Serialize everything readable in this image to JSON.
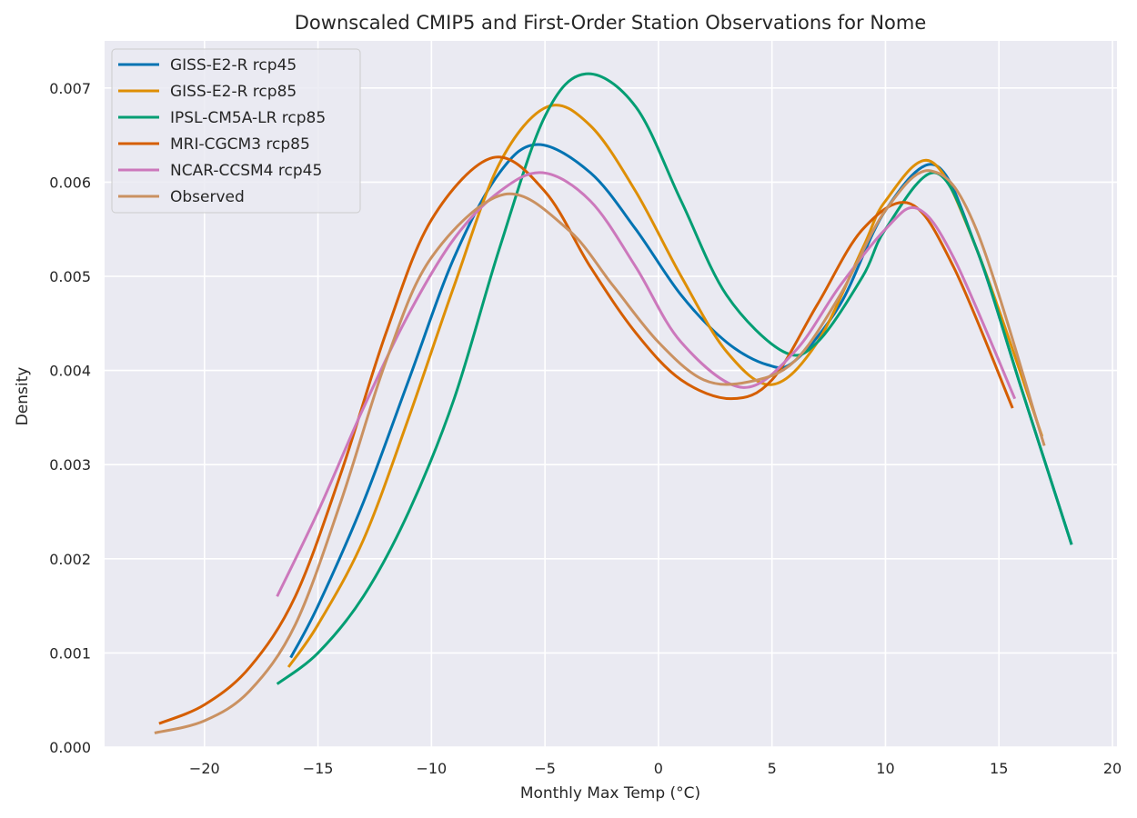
{
  "chart_data": {
    "type": "line",
    "title": "Downscaled CMIP5 and First-Order Station Observations for Nome",
    "xlabel": "Monthly Max Temp (°C)",
    "ylabel": "Density",
    "xlim": [
      -24.4,
      20.2
    ],
    "ylim": [
      0,
      0.0075
    ],
    "xticks": [
      -20,
      -15,
      -10,
      -5,
      0,
      5,
      10,
      15,
      20
    ],
    "xtick_labels": [
      "−20",
      "−15",
      "−10",
      "−5",
      "0",
      "5",
      "10",
      "15",
      "20"
    ],
    "yticks": [
      0,
      0.001,
      0.002,
      0.003,
      0.004,
      0.005,
      0.006,
      0.007
    ],
    "ytick_labels": [
      "0.000",
      "0.001",
      "0.002",
      "0.003",
      "0.004",
      "0.005",
      "0.006",
      "0.007"
    ],
    "grid": true,
    "legend_position": "top-left",
    "series": [
      {
        "name": "GISS-E2-R rcp45",
        "color": "#0173b2",
        "x": [
          -16.2,
          -15,
          -13,
          -11,
          -9,
          -7,
          -5.3,
          -3,
          -1,
          1,
          3,
          4.8,
          6,
          8,
          10,
          12.2,
          14,
          16,
          18.2
        ],
        "y": [
          0.00095,
          0.0015,
          0.0026,
          0.0039,
          0.0052,
          0.0061,
          0.0064,
          0.0061,
          0.0055,
          0.0048,
          0.0043,
          0.00406,
          0.0041,
          0.0047,
          0.0057,
          0.00618,
          0.0053,
          0.0038,
          0.00215
        ]
      },
      {
        "name": "GISS-E2-R rcp85",
        "color": "#de8f05",
        "x": [
          -16.3,
          -15,
          -13,
          -11,
          -9,
          -7,
          -4.9,
          -3,
          -1,
          1,
          3,
          5,
          7,
          9,
          10,
          12,
          14,
          16.9
        ],
        "y": [
          0.00085,
          0.0013,
          0.0022,
          0.0035,
          0.0049,
          0.0062,
          0.0068,
          0.0066,
          0.0059,
          0.005,
          0.0042,
          0.00385,
          0.0043,
          0.0053,
          0.0058,
          0.00622,
          0.0053,
          0.0033
        ]
      },
      {
        "name": "IPSL-CM5A-LR rcp85",
        "color": "#029e73",
        "x": [
          -16.8,
          -15,
          -13,
          -11,
          -9,
          -7,
          -5,
          -3.2,
          -1,
          1,
          3,
          5.5,
          7,
          9,
          10,
          12.2,
          14,
          16,
          18.2
        ],
        "y": [
          0.00067,
          0.001,
          0.0016,
          0.0025,
          0.0037,
          0.0053,
          0.0067,
          0.00715,
          0.0068,
          0.0058,
          0.0048,
          0.0042,
          0.0043,
          0.005,
          0.0055,
          0.0061,
          0.0053,
          0.0038,
          0.00215
        ]
      },
      {
        "name": "MRI-CGCM3 rcp85",
        "color": "#d55e00",
        "x": [
          -22,
          -20,
          -18,
          -16,
          -14,
          -12,
          -10,
          -7.3,
          -5,
          -3,
          -1,
          1,
          3.2,
          5,
          7,
          9,
          11.1,
          13,
          15.6
        ],
        "y": [
          0.00025,
          0.00045,
          0.00085,
          0.0016,
          0.0029,
          0.0044,
          0.0056,
          0.00626,
          0.0059,
          0.0051,
          0.0044,
          0.0039,
          0.0037,
          0.0039,
          0.0047,
          0.0055,
          0.00577,
          0.0051,
          0.0036
        ]
      },
      {
        "name": "NCAR-CCSM4 rcp45",
        "color": "#cc78bc",
        "x": [
          -16.8,
          -15,
          -13,
          -11,
          -9,
          -7,
          -5.1,
          -3,
          -1,
          1,
          3.7,
          6,
          8,
          10,
          11.4,
          13,
          15.7
        ],
        "y": [
          0.0016,
          0.0025,
          0.0036,
          0.0046,
          0.0054,
          0.0059,
          0.0061,
          0.0058,
          0.0051,
          0.0043,
          0.00382,
          0.0042,
          0.0049,
          0.0055,
          0.00572,
          0.0052,
          0.0037
        ]
      },
      {
        "name": "Observed",
        "color": "#ca9161",
        "x": [
          -22.2,
          -20,
          -18,
          -16,
          -14,
          -12,
          -10,
          -6.8,
          -4,
          -2,
          0,
          2,
          4,
          6,
          8,
          10,
          12,
          14,
          17
        ],
        "y": [
          0.00015,
          0.00028,
          0.0006,
          0.0013,
          0.0026,
          0.0041,
          0.0052,
          0.00587,
          0.0055,
          0.0049,
          0.0043,
          0.0039,
          0.00388,
          0.0041,
          0.0048,
          0.0057,
          0.00612,
          0.0055,
          0.0032
        ]
      }
    ]
  }
}
